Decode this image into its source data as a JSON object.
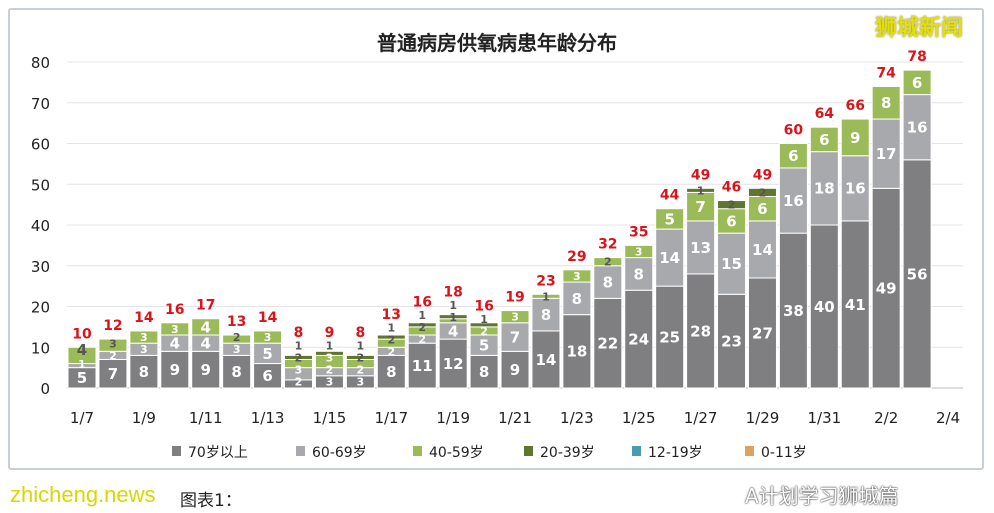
{
  "chart_data": {
    "type": "bar",
    "stacked": true,
    "title": "普通病房供氧病患年龄分布",
    "categories": [
      "1/7",
      "1/8",
      "1/9",
      "1/10",
      "1/11",
      "1/12",
      "1/13",
      "1/14",
      "1/15",
      "1/16",
      "1/17",
      "1/18",
      "1/19",
      "1/20",
      "1/21",
      "1/22",
      "1/23",
      "1/24",
      "1/25",
      "1/26",
      "1/27",
      "1/28",
      "1/29",
      "1/30",
      "1/31",
      "2/1",
      "2/2",
      "2/3"
    ],
    "x_tick_labels": [
      "1/7",
      "1/9",
      "1/11",
      "1/13",
      "1/15",
      "1/17",
      "1/19",
      "1/21",
      "1/23",
      "1/25",
      "1/27",
      "1/29",
      "1/31",
      "2/2",
      "2/4"
    ],
    "ylim": [
      0,
      80
    ],
    "y_ticks": [
      0,
      10,
      20,
      30,
      40,
      50,
      60,
      70,
      80
    ],
    "grid": true,
    "legend_position": "bottom",
    "series": [
      {
        "name": "70岁以上",
        "color": "#7f7f82",
        "values": [
          5,
          7,
          8,
          9,
          9,
          8,
          6,
          2,
          3,
          3,
          8,
          11,
          12,
          8,
          9,
          14,
          18,
          22,
          24,
          25,
          28,
          23,
          27,
          38,
          40,
          41,
          49,
          56
        ]
      },
      {
        "name": "60-69岁",
        "color": "#a8a9ad",
        "values": [
          1,
          2,
          3,
          4,
          4,
          3,
          5,
          3,
          2,
          2,
          2,
          2,
          4,
          5,
          7,
          8,
          8,
          8,
          8,
          14,
          13,
          15,
          14,
          16,
          18,
          16,
          17,
          16
        ]
      },
      {
        "name": "40-59岁",
        "color": "#9bbb59",
        "values": [
          4,
          3,
          3,
          3,
          4,
          2,
          3,
          2,
          3,
          2,
          2,
          2,
          1,
          2,
          3,
          1,
          3,
          2,
          3,
          5,
          7,
          6,
          6,
          6,
          6,
          9,
          8,
          6
        ]
      },
      {
        "name": "20-39岁",
        "color": "#5f7530",
        "values": [
          0,
          0,
          0,
          0,
          0,
          0,
          0,
          1,
          1,
          1,
          1,
          1,
          1,
          1,
          0,
          0,
          0,
          0,
          0,
          0,
          1,
          2,
          2,
          0,
          0,
          0,
          0,
          0
        ]
      },
      {
        "name": "12-19岁",
        "color": "#4a9bb0",
        "values": [
          0,
          0,
          0,
          0,
          0,
          0,
          0,
          0,
          0,
          0,
          0,
          0,
          0,
          0,
          0,
          0,
          0,
          0,
          0,
          0,
          0,
          0,
          0,
          0,
          0,
          0,
          0,
          0
        ]
      },
      {
        "name": "0-11岁",
        "color": "#e0a060",
        "values": [
          0,
          0,
          0,
          0,
          0,
          0,
          0,
          0,
          0,
          0,
          0,
          0,
          0,
          0,
          0,
          0,
          0,
          0,
          0,
          0,
          0,
          0,
          0,
          0,
          0,
          0,
          0,
          0
        ]
      }
    ],
    "totals": [
      10,
      12,
      14,
      16,
      17,
      13,
      14,
      8,
      9,
      8,
      13,
      16,
      18,
      16,
      19,
      23,
      29,
      32,
      35,
      44,
      49,
      46,
      49,
      60,
      64,
      66,
      74,
      78
    ],
    "total_label_color": "#d9141b"
  },
  "caption": "图表1：",
  "watermarks": {
    "site": "zhicheng.news",
    "brand": "狮城新闻",
    "account": "A计划学习狮城篇"
  }
}
